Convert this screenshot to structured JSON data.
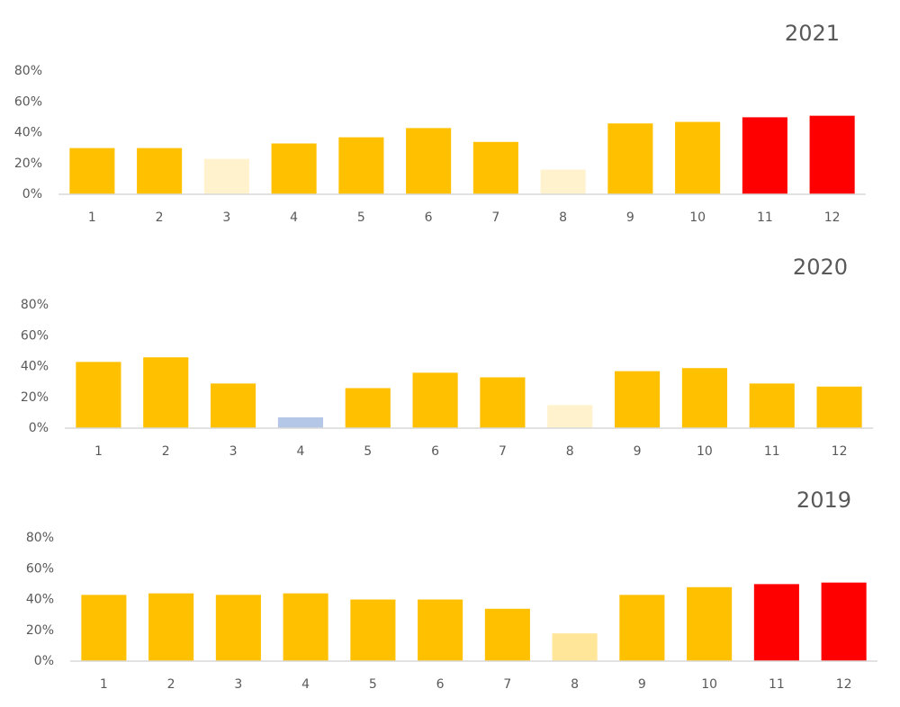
{
  "chart_data": [
    {
      "type": "bar",
      "title": "2021",
      "categories": [
        "1",
        "2",
        "3",
        "4",
        "5",
        "6",
        "7",
        "8",
        "9",
        "10",
        "11",
        "12"
      ],
      "values": [
        30,
        30,
        23,
        33,
        37,
        43,
        34,
        16,
        46,
        47,
        50,
        51
      ],
      "colors": [
        "#FFC000",
        "#FFC000",
        "#FFF2CC",
        "#FFC000",
        "#FFC000",
        "#FFC000",
        "#FFC000",
        "#FFF2CC",
        "#FFC000",
        "#FFC000",
        "#FF0000",
        "#FF0000"
      ],
      "ylim": [
        0,
        80
      ],
      "yticks": [
        {
          "value": 0,
          "label": "0%"
        },
        {
          "value": 20,
          "label": "20%"
        },
        {
          "value": 40,
          "label": "40%"
        },
        {
          "value": 60,
          "label": "60%"
        },
        {
          "value": 80,
          "label": "80%"
        }
      ],
      "grid": false
    },
    {
      "type": "bar",
      "title": "2020",
      "categories": [
        "1",
        "2",
        "3",
        "4",
        "5",
        "6",
        "7",
        "8",
        "9",
        "10",
        "11",
        "12"
      ],
      "values": [
        43,
        46,
        29,
        7,
        26,
        36,
        33,
        15,
        37,
        39,
        29,
        27
      ],
      "colors": [
        "#FFC000",
        "#FFC000",
        "#FFC000",
        "#B4C7E7",
        "#FFC000",
        "#FFC000",
        "#FFC000",
        "#FFF2CC",
        "#FFC000",
        "#FFC000",
        "#FFC000",
        "#FFC000"
      ],
      "ylim": [
        0,
        80
      ],
      "yticks": [
        {
          "value": 0,
          "label": "0%"
        },
        {
          "value": 20,
          "label": "20%"
        },
        {
          "value": 40,
          "label": "40%"
        },
        {
          "value": 60,
          "label": "60%"
        },
        {
          "value": 80,
          "label": "80%"
        }
      ],
      "grid": false
    },
    {
      "type": "bar",
      "title": "2019",
      "categories": [
        "1",
        "2",
        "3",
        "4",
        "5",
        "6",
        "7",
        "8",
        "9",
        "10",
        "11",
        "12"
      ],
      "values": [
        43,
        44,
        43,
        44,
        40,
        40,
        34,
        18,
        43,
        48,
        50,
        51
      ],
      "colors": [
        "#FFC000",
        "#FFC000",
        "#FFC000",
        "#FFC000",
        "#FFC000",
        "#FFC000",
        "#FFC000",
        "#FFE699",
        "#FFC000",
        "#FFC000",
        "#FF0000",
        "#FF0000"
      ],
      "ylim": [
        0,
        80
      ],
      "yticks": [
        {
          "value": 0,
          "label": "0%"
        },
        {
          "value": 20,
          "label": "20%"
        },
        {
          "value": 40,
          "label": "40%"
        },
        {
          "value": 60,
          "label": "60%"
        },
        {
          "value": 80,
          "label": "80%"
        }
      ],
      "grid": false
    }
  ]
}
